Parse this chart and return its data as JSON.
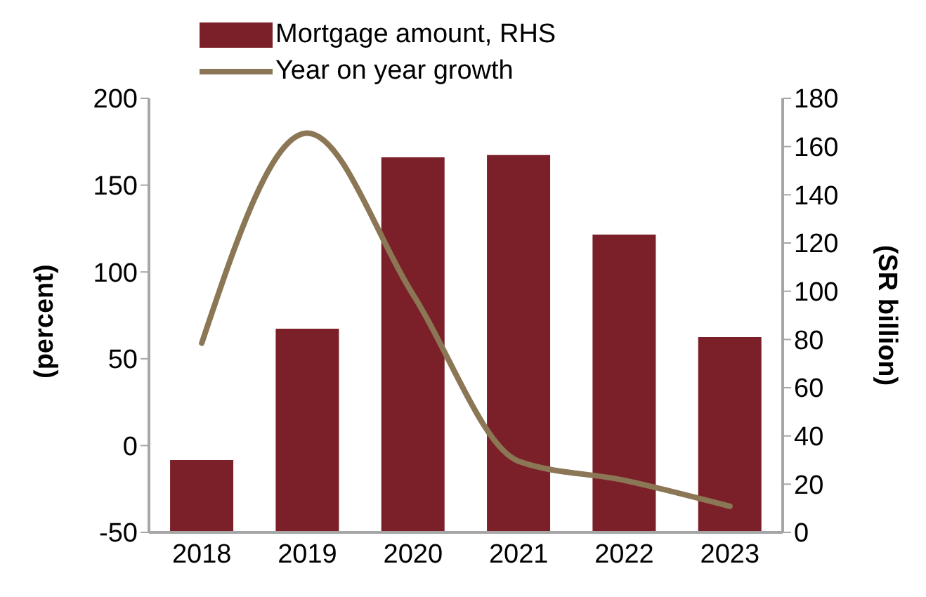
{
  "chart_data": {
    "type": "bar",
    "categories": [
      "2018",
      "2019",
      "2020",
      "2021",
      "2022",
      "2023"
    ],
    "series": [
      {
        "name": "Mortgage amount, RHS",
        "axis": "y2",
        "color": "#7b2029",
        "values": [
          30,
          84.5,
          155.5,
          156.5,
          123.5,
          81
        ]
      },
      {
        "name": "Year on year growth",
        "type": "line",
        "axis": "y",
        "color": "#8b7755",
        "values": [
          59,
          180,
          87,
          -9,
          -20,
          -35
        ]
      }
    ],
    "ylabel": "(percent)",
    "y2label": "(SR billion)",
    "ylim": [
      -50,
      200
    ],
    "yticks": [
      -50,
      0,
      50,
      100,
      150,
      200
    ],
    "y2lim": [
      0,
      180
    ],
    "y2ticks": [
      0,
      20,
      40,
      60,
      80,
      100,
      120,
      140,
      160,
      180
    ],
    "legend": "top",
    "grid": false,
    "marker": "none",
    "line_style": "solid"
  }
}
